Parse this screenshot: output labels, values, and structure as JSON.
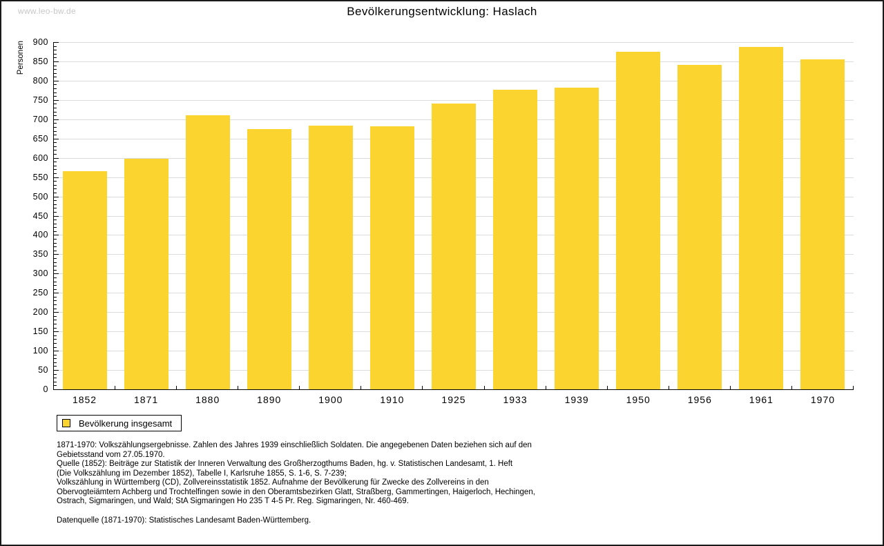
{
  "watermark": "www.leo-bw.de",
  "header": {
    "title": "Bevölkerungsentwicklung: Haslach"
  },
  "chart_data": {
    "type": "bar",
    "title": "Bevölkerungsentwicklung: Haslach",
    "ylabel": "Personen",
    "xlabel": "",
    "categories": [
      "1852",
      "1871",
      "1880",
      "1890",
      "1900",
      "1910",
      "1925",
      "1933",
      "1939",
      "1950",
      "1956",
      "1961",
      "1970"
    ],
    "values": [
      565,
      598,
      710,
      675,
      683,
      682,
      740,
      777,
      782,
      875,
      841,
      888,
      855
    ],
    "ylim": [
      0,
      900
    ],
    "ytick_step": 50,
    "yminor_step": 10,
    "grid": true,
    "legend": {
      "label": "Bevölkerung insgesamt",
      "position": "bottom-left"
    },
    "bar_color": "#FCD42F"
  },
  "colors": {
    "bar": "#FCD42F",
    "grid": "#DBDBDB",
    "axis": "#000000",
    "watermark": "#C7C7C7"
  },
  "notes": {
    "lines": [
      "1871-1970: Volkszählungsergebnisse. Zahlen des Jahres 1939 einschließlich Soldaten. Die angegebenen Daten beziehen sich auf den",
      "Gebietsstand vom 27.05.1970.",
      "Quelle (1852): Beiträge zur Statistik der Inneren Verwaltung des Großherzogthums Baden, hg. v. Statistischen Landesamt, 1. Heft",
      "(Die Volkszählung im Dezember 1852), Tabelle I, Karlsruhe 1855, S. 1-6, S. 7-239;",
      "Volkszählung in Württemberg (CD), Zollvereinsstatistik 1852. Aufnahme der Bevölkerung für Zwecke des Zollvereins in den",
      "Obervogteiämtern Achberg und Trochtelfingen sowie in den Oberamtsbezirken Glatt, Straßberg, Gammertingen, Haigerloch, Hechingen,",
      "Ostrach, Sigmaringen, und Wald; StA Sigmaringen Ho 235 T 4-5 Pr. Reg. Sigmaringen, Nr. 460-469."
    ],
    "datenquelle": "Datenquelle (1871-1970): Statistisches Landesamt Baden-Württemberg."
  }
}
